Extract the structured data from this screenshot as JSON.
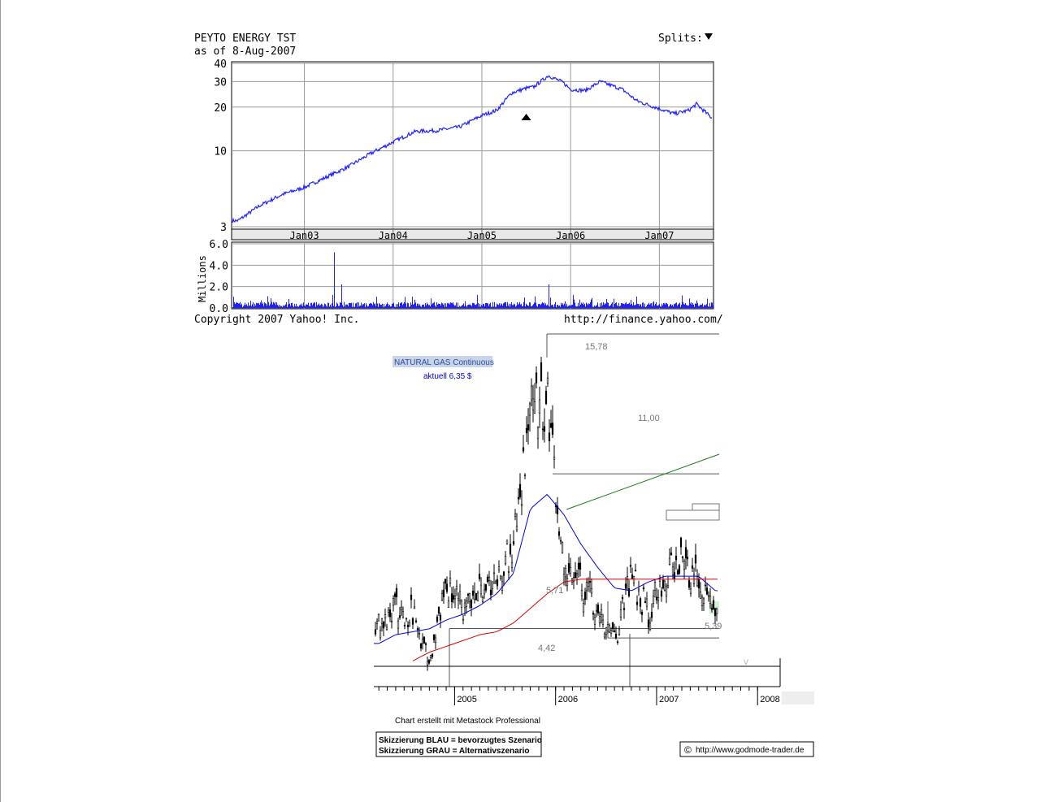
{
  "yahoo": {
    "title": "PEYTO ENERGY TST",
    "asof": "as of 8-Aug-2007",
    "splits_label": "Splits:",
    "copyright": "Copyright 2007 Yahoo! Inc.",
    "url": "http://finance.yahoo.com/",
    "volume_axis_label": "Millions"
  },
  "godmode": {
    "instrument": "NATURAL GAS Continuous",
    "current": "aktuell 6,35 $",
    "level_labels": [
      "15,78",
      "11,00",
      "5,71",
      "5,39",
      "4,42"
    ],
    "credit": "Chart erstellt mit Metastock Professional",
    "legend_blue": "Skizzierung BLAU = bevorzugtes Szenario",
    "legend_grey": "Skizzierung GRAU = Alternativszenario",
    "site": "http://www.godmode-trader.de",
    "copyright_symbol": "©"
  },
  "chart_data": [
    {
      "type": "line",
      "title": "PEYTO ENERGY TST",
      "subtitle": "as of 8-Aug-2007",
      "scale": "log",
      "ylim": [
        3,
        40
      ],
      "yticks": [
        3,
        10,
        20,
        30,
        40
      ],
      "xtick_labels": [
        "Jan03",
        "Jan04",
        "Jan05",
        "Jan06",
        "Jan07"
      ],
      "grid": true,
      "split_marker_date": "2005-07",
      "x": [
        "2002-04",
        "2002-07",
        "2002-10",
        "2003-01",
        "2003-04",
        "2003-07",
        "2003-10",
        "2004-01",
        "2004-04",
        "2004-07",
        "2004-10",
        "2005-01",
        "2005-03",
        "2005-05",
        "2005-07",
        "2005-08",
        "2005-10",
        "2005-12",
        "2006-01",
        "2006-03",
        "2006-05",
        "2006-08",
        "2006-10",
        "2007-01",
        "2007-03",
        "2007-05",
        "2007-06",
        "2007-08"
      ],
      "values": [
        3.3,
        4.2,
        5.0,
        5.6,
        6.6,
        7.8,
        9.6,
        11.5,
        13.6,
        13.8,
        14.6,
        17.5,
        19.0,
        25.0,
        27.0,
        27.5,
        33.0,
        29.5,
        26.5,
        26.0,
        30.0,
        26.5,
        22.0,
        19.5,
        18.0,
        19.0,
        21.0,
        17.0
      ]
    },
    {
      "type": "bar",
      "title": "",
      "ylabel": "Millions",
      "ylim": [
        0,
        6.0
      ],
      "yticks": [
        0.0,
        2.0,
        4.0,
        6.0
      ],
      "grid": true,
      "x": [
        "2002-08",
        "2003-05",
        "2003-06",
        "2005-10"
      ],
      "values": [
        1.1,
        5.2,
        2.2,
        2.2
      ],
      "baseline_typical": 0.4
    },
    {
      "type": "candlestick",
      "title": "NATURAL GAS Continuous",
      "subtitle": "aktuell 6,35 $",
      "xtick_labels": [
        "2005",
        "2006",
        "2007",
        "2008"
      ],
      "levels": [
        15.78,
        11.0,
        5.71,
        5.39,
        4.42
      ],
      "x": [
        "2004-04",
        "2004-06",
        "2004-08",
        "2004-10",
        "2004-12",
        "2005-02",
        "2005-04",
        "2005-06",
        "2005-08",
        "2005-10",
        "2005-12",
        "2006-02",
        "2006-04",
        "2006-06",
        "2006-08",
        "2006-10",
        "2006-12",
        "2007-02",
        "2007-04",
        "2007-06",
        "2007-08"
      ],
      "close": [
        6.0,
        6.4,
        6.2,
        4.6,
        7.2,
        6.3,
        7.1,
        7.5,
        8.6,
        13.0,
        13.5,
        8.0,
        7.2,
        6.5,
        5.2,
        7.5,
        6.2,
        7.6,
        7.9,
        7.3,
        6.35
      ],
      "series": [
        {
          "name": "",
          "color": "#0000dd",
          "values": [
            5.2,
            5.5,
            5.6,
            5.7,
            6.0,
            6.2,
            6.5,
            6.9,
            7.6,
            9.8,
            10.3,
            9.6,
            8.6,
            7.8,
            7.1,
            7.0,
            7.3,
            7.5,
            7.5,
            7.5,
            7.0
          ]
        },
        {
          "name": "",
          "color": "#dd0000",
          "values": [
            null,
            null,
            4.6,
            4.9,
            5.1,
            5.3,
            5.5,
            5.6,
            5.9,
            6.4,
            6.9,
            7.3,
            7.4,
            7.4,
            7.4,
            7.4,
            7.4,
            7.4,
            7.4,
            7.4,
            7.4
          ]
        }
      ]
    }
  ]
}
